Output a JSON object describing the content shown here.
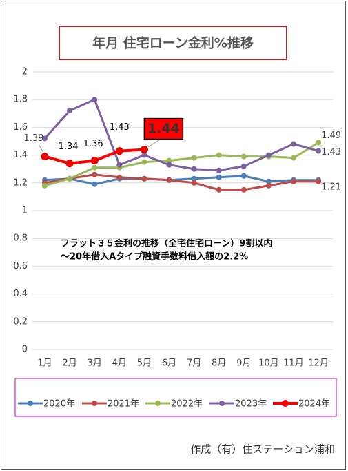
{
  "chart_data": {
    "type": "line",
    "title": "年月 住宅ローン金利%推移",
    "annotations": [
      "フラット３５金利の推移（全宅住宅ローン）9割以内",
      "～20年借入Aタイプ融資手数料借入額の2.2%"
    ],
    "footer": "作成（有）住ステーション浦和",
    "categories": [
      "1月",
      "2月",
      "3月",
      "4月",
      "5月",
      "6月",
      "7月",
      "8月",
      "9月",
      "10月",
      "11月",
      "12月"
    ],
    "ylim": [
      0,
      2
    ],
    "yticks": [
      0,
      0.2,
      0.4,
      0.6,
      0.8,
      1,
      1.2,
      1.4,
      1.6,
      1.8,
      2
    ],
    "grid": true,
    "legend": "bottom",
    "series": [
      {
        "name": "2020年",
        "color": "#4a7ebb",
        "values": [
          1.22,
          1.23,
          1.19,
          1.23,
          1.23,
          1.22,
          1.23,
          1.24,
          1.25,
          1.21,
          1.22,
          1.22
        ]
      },
      {
        "name": "2021年",
        "color": "#be4b48",
        "values": [
          1.2,
          1.23,
          1.26,
          1.24,
          1.23,
          1.22,
          1.2,
          1.15,
          1.15,
          1.18,
          1.21,
          1.21
        ],
        "value_labels": [
          null,
          null,
          null,
          null,
          null,
          null,
          null,
          null,
          null,
          null,
          null,
          "1.21"
        ]
      },
      {
        "name": "2022年",
        "color": "#98b954",
        "values": [
          1.18,
          1.23,
          1.31,
          1.31,
          1.35,
          1.36,
          1.38,
          1.4,
          1.39,
          1.39,
          1.38,
          1.49
        ],
        "value_labels": [
          null,
          null,
          null,
          null,
          null,
          null,
          null,
          null,
          null,
          null,
          null,
          "1.49"
        ]
      },
      {
        "name": "2023年",
        "color": "#7d60a0",
        "values": [
          1.52,
          1.72,
          1.8,
          1.33,
          1.4,
          1.33,
          1.3,
          1.29,
          1.32,
          1.4,
          1.48,
          1.43
        ],
        "value_labels": [
          null,
          null,
          null,
          null,
          null,
          null,
          null,
          null,
          null,
          null,
          null,
          "1.43"
        ]
      },
      {
        "name": "2024年",
        "color": "#ff0000",
        "values": [
          1.39,
          1.34,
          1.36,
          1.43,
          1.44,
          null,
          null,
          null,
          null,
          null,
          null,
          null
        ],
        "value_labels": [
          "1.39",
          "1.34",
          "1.36",
          "1.43",
          "1.44",
          null,
          null,
          null,
          null,
          null,
          null,
          null
        ]
      }
    ]
  }
}
